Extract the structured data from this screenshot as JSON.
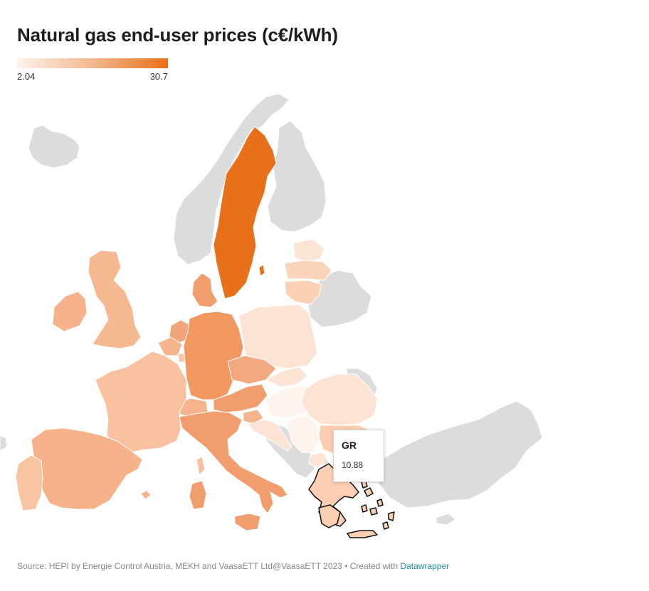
{
  "title": "Natural gas end-user prices (c€/kWh)",
  "legend": {
    "min": "2.04",
    "max": "30.7",
    "color_low": "#fdf3ec",
    "color_high": "#e8701a"
  },
  "colors": {
    "no_data": "#dcdcdc",
    "tooltip_border": "#d6d6d6",
    "link": "#1d8fa8"
  },
  "tooltip": {
    "code": "GR",
    "value": "10.88"
  },
  "footer": {
    "source": "Source: HEPI by Energie Control Austria, MEKH and VaasaETT Ltd@VaasaETT 2023 • Created with ",
    "link": "Datawrapper"
  }
}
